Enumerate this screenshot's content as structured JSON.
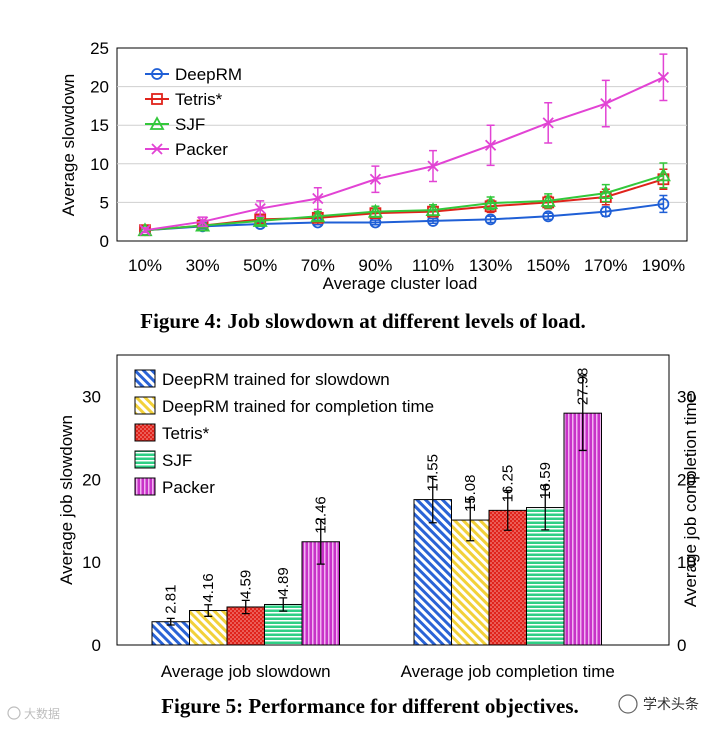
{
  "chart_data": [
    {
      "type": "line",
      "title": "Figure 4: Job slowdown at different levels of load.",
      "xlabel": "Average cluster load",
      "ylabel": "Average slowdown",
      "x": [
        "10%",
        "30%",
        "50%",
        "70%",
        "90%",
        "110%",
        "130%",
        "150%",
        "170%",
        "190%"
      ],
      "ylim": [
        0,
        25
      ],
      "yticks": [
        0,
        5,
        10,
        15,
        20,
        25
      ],
      "legend_position": "top-left",
      "series": [
        {
          "name": "DeepRM",
          "color": "#1f5fd6",
          "marker": "circle",
          "values": [
            1.4,
            1.9,
            2.2,
            2.4,
            2.4,
            2.6,
            2.8,
            3.2,
            3.8,
            4.8
          ],
          "errors": [
            0.2,
            0.3,
            0.3,
            0.3,
            0.3,
            0.3,
            0.4,
            0.4,
            0.6,
            1.1
          ]
        },
        {
          "name": "Tetris*",
          "color": "#e0231b",
          "marker": "square",
          "values": [
            1.4,
            2.0,
            2.8,
            3.0,
            3.6,
            3.8,
            4.5,
            5.0,
            5.7,
            8.0
          ],
          "errors": [
            0.2,
            0.3,
            0.5,
            0.5,
            0.6,
            0.6,
            0.8,
            0.8,
            1.0,
            1.3
          ]
        },
        {
          "name": "SJF",
          "color": "#33c83b",
          "marker": "triangle",
          "values": [
            1.4,
            2.0,
            2.6,
            3.2,
            3.8,
            4.0,
            4.9,
            5.2,
            6.2,
            8.5
          ],
          "errors": [
            0.2,
            0.3,
            0.5,
            0.6,
            0.7,
            0.7,
            0.8,
            0.9,
            1.1,
            1.6
          ]
        },
        {
          "name": "Packer",
          "color": "#e243d4",
          "marker": "x",
          "values": [
            1.4,
            2.5,
            4.2,
            5.5,
            8.0,
            9.7,
            12.4,
            15.3,
            17.8,
            21.2
          ],
          "errors": [
            0.3,
            0.6,
            1.0,
            1.4,
            1.7,
            2.0,
            2.6,
            2.6,
            3.0,
            3.0
          ]
        }
      ]
    },
    {
      "type": "bar",
      "title": "Figure 5: Performance for different objectives.",
      "categories": [
        "Average job slowdown",
        "Average job completion time"
      ],
      "ylabel": "Average job slowdown",
      "ylabel_right": "Average job completion time",
      "ylim": [
        0,
        35
      ],
      "yticks": [
        0,
        10,
        20,
        30
      ],
      "legend_position": "top-left",
      "series": [
        {
          "name": "DeepRM trained for slowdown",
          "pattern": "hatch-blue",
          "values": [
            2.81,
            17.55
          ],
          "labels": [
            "2.81",
            "17.55"
          ],
          "errors": [
            0.4,
            2.8
          ]
        },
        {
          "name": "DeepRM trained for completion time",
          "pattern": "hatch-yellow",
          "values": [
            4.16,
            15.08
          ],
          "labels": [
            "4.16",
            "15.08"
          ],
          "errors": [
            0.7,
            2.5
          ]
        },
        {
          "name": "Tetris*",
          "pattern": "dots-red",
          "values": [
            4.59,
            16.25
          ],
          "labels": [
            "4.59",
            "16.25"
          ],
          "errors": [
            0.8,
            2.4
          ]
        },
        {
          "name": "SJF",
          "pattern": "stripes-green",
          "values": [
            4.89,
            16.59
          ],
          "labels": [
            "4.89",
            "16.59"
          ],
          "errors": [
            0.8,
            2.7
          ]
        },
        {
          "name": "Packer",
          "pattern": "stripes-magenta",
          "values": [
            12.46,
            27.98
          ],
          "labels": [
            "12.46",
            "27.98"
          ],
          "errors": [
            2.7,
            4.5
          ]
        }
      ]
    }
  ],
  "watermarks": {
    "left": "大数据",
    "right": "学术头条"
  }
}
